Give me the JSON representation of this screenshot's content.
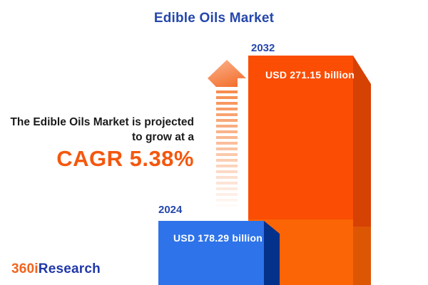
{
  "title": "Edible Oils Market",
  "tagline": {
    "line1": "The Edible Oils Market is projected",
    "line2": "to grow at a",
    "cagr": "CAGR 5.38%"
  },
  "bars": [
    {
      "year": "2024",
      "value_label": "USD 178.29 billion",
      "front_color": "#2E73E9",
      "side_color": "#04318A"
    },
    {
      "year": "2032",
      "value_label": "USD 271.15 billion",
      "front_color_top": "#FB4D04",
      "front_color_bottom": "#FB6505",
      "side_color_top": "#D64104",
      "side_color_bottom": "#DD5604"
    }
  ],
  "logo": {
    "part1": "360i",
    "part2": "Research"
  },
  "colors": {
    "title_blue": "#2547AC",
    "accent_orange": "#F4570E",
    "text_dark": "#1A1A1A",
    "arrow_orange": "#F5813D",
    "logo_orange": "#F2641E",
    "logo_blue": "#2038A8",
    "background": "#FFFFFF"
  },
  "chart_data": {
    "type": "bar",
    "title": "Edible Oils Market",
    "categories": [
      "2024",
      "2032"
    ],
    "values": [
      178.29,
      271.15
    ],
    "value_labels": [
      "USD 178.29 billion",
      "USD 271.15 billion"
    ],
    "unit": "USD billion",
    "cagr_percent": 5.38,
    "annotation": "The Edible Oils Market is projected to grow at a CAGR 5.38%",
    "xlabel": "",
    "ylabel": "",
    "grid": false,
    "legend": "none",
    "bar_colors": [
      "#2E73E9",
      "#FB4D04"
    ]
  }
}
